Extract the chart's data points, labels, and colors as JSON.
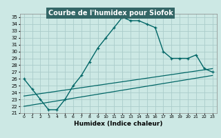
{
  "title": "Courbe de l'humidex pour Siofok",
  "xlabel": "Humidex (Indice chaleur)",
  "bg_color": "#cce8e4",
  "grid_color": "#aaccca",
  "line_color": "#006666",
  "title_bg": "#336666",
  "title_fg": "#ffffff",
  "xlim": [
    -0.5,
    23.5
  ],
  "ylim": [
    21,
    35.5
  ],
  "xticks": [
    0,
    1,
    2,
    3,
    4,
    5,
    6,
    7,
    8,
    9,
    10,
    11,
    12,
    13,
    14,
    15,
    16,
    17,
    18,
    19,
    20,
    21,
    22,
    23
  ],
  "yticks": [
    21,
    22,
    23,
    24,
    25,
    26,
    27,
    28,
    29,
    30,
    31,
    32,
    33,
    34,
    35
  ],
  "main_x": [
    0,
    1,
    2,
    3,
    4,
    5,
    6,
    7,
    8,
    9,
    10,
    11,
    12,
    13,
    14,
    15,
    16,
    17,
    18,
    19,
    20,
    21,
    22,
    23
  ],
  "main_y": [
    26.0,
    24.5,
    23.0,
    21.5,
    21.5,
    23.0,
    25.0,
    26.5,
    28.5,
    30.5,
    32.0,
    33.5,
    35.0,
    34.5,
    34.5,
    34.0,
    33.5,
    30.0,
    29.0,
    29.0,
    29.0,
    29.5,
    27.5,
    27.0
  ],
  "line2_x": [
    0,
    23
  ],
  "line2_y": [
    23.5,
    27.5
  ],
  "line3_x": [
    0,
    23
  ],
  "line3_y": [
    22.0,
    26.5
  ]
}
